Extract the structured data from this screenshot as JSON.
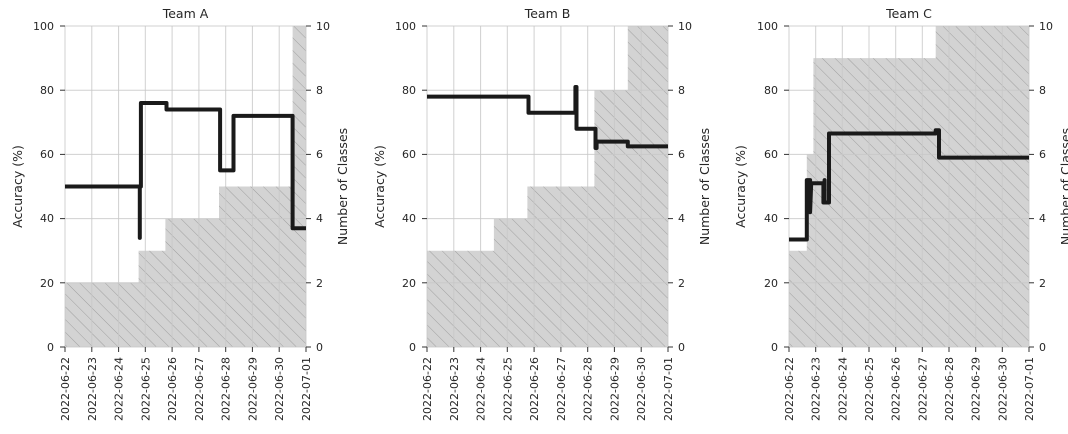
{
  "chart_data": [
    {
      "type": "line",
      "title": "Team A",
      "ylabel": "Accuracy (%)",
      "y2label": "Number of Classes",
      "ylim": [
        0,
        100
      ],
      "y2lim": [
        0,
        10
      ],
      "yticks": [
        "0",
        "20",
        "40",
        "60",
        "80",
        "100"
      ],
      "y2ticks": [
        "0",
        "2",
        "4",
        "6",
        "8",
        "10"
      ],
      "xlim": [
        "2022-06-22",
        "2022-07-01"
      ],
      "x_ticks": [
        "2022-06-22",
        "2022-06-23",
        "2022-06-24",
        "2022-06-25",
        "2022-06-26",
        "2022-06-27",
        "2022-06-28",
        "2022-06-29",
        "2022-06-30",
        "2022-07-01"
      ],
      "grid": true,
      "series": [
        {
          "axis": "left",
          "style": "step line",
          "color": "#1a1a1a",
          "x": [
            "2022-06-22 00:00",
            "2022-06-24 19:00",
            "2022-06-24 19:00",
            "2022-06-24 19:00",
            "2022-06-24 20:00",
            "2022-06-24 20:00",
            "2022-06-25 19:00",
            "2022-06-25 19:00",
            "2022-06-27 19:00",
            "2022-06-27 19:00",
            "2022-06-28 07:00",
            "2022-06-28 07:00",
            "2022-06-30 12:00",
            "2022-06-30 12:00",
            "2022-07-01 00:00"
          ],
          "y": [
            50,
            50,
            34,
            50,
            50,
            76,
            76,
            74,
            74,
            55,
            55,
            72,
            72,
            37,
            37
          ]
        },
        {
          "axis": "right",
          "style": "step area",
          "color": "#d3d3d3",
          "hatch": "//",
          "x": [
            "2022-06-22 00:00",
            "2022-06-24 18:00",
            "2022-06-24 18:00",
            "2022-06-25 18:00",
            "2022-06-25 18:00",
            "2022-06-27 18:00",
            "2022-06-27 18:00",
            "2022-06-30 12:00",
            "2022-06-30 12:00",
            "2022-07-01 00:00"
          ],
          "y": [
            2,
            2,
            3,
            3,
            4,
            4,
            5,
            5,
            10,
            10
          ]
        }
      ]
    },
    {
      "type": "line",
      "title": "Team B",
      "ylabel": "Accuracy (%)",
      "y2label": "Number of Classes",
      "ylim": [
        0,
        100
      ],
      "y2lim": [
        0,
        10
      ],
      "yticks": [
        "0",
        "20",
        "40",
        "60",
        "80",
        "100"
      ],
      "y2ticks": [
        "0",
        "2",
        "4",
        "6",
        "8",
        "10"
      ],
      "xlim": [
        "2022-06-22",
        "2022-07-01"
      ],
      "x_ticks": [
        "2022-06-22",
        "2022-06-23",
        "2022-06-24",
        "2022-06-25",
        "2022-06-26",
        "2022-06-27",
        "2022-06-28",
        "2022-06-29",
        "2022-06-30",
        "2022-07-01"
      ],
      "grid": true,
      "series": [
        {
          "axis": "left",
          "style": "step line",
          "color": "#1a1a1a",
          "x": [
            "2022-06-22 00:00",
            "2022-06-25 19:00",
            "2022-06-25 19:00",
            "2022-06-27 13:00",
            "2022-06-27 13:00",
            "2022-06-27 14:00",
            "2022-06-27 14:00",
            "2022-06-28 07:00",
            "2022-06-28 07:00",
            "2022-06-28 08:00",
            "2022-06-28 08:00",
            "2022-06-29 12:00",
            "2022-06-29 12:00",
            "2022-07-01 00:00"
          ],
          "y": [
            78,
            78,
            73,
            73,
            81,
            81,
            68,
            68,
            62,
            62,
            64,
            64,
            62.5,
            62.5
          ]
        },
        {
          "axis": "right",
          "style": "step area",
          "color": "#d3d3d3",
          "hatch": "//",
          "x": [
            "2022-06-22 00:00",
            "2022-06-24 12:00",
            "2022-06-24 12:00",
            "2022-06-25 18:00",
            "2022-06-25 18:00",
            "2022-06-28 06:00",
            "2022-06-28 06:00",
            "2022-06-29 12:00",
            "2022-06-29 12:00",
            "2022-07-01 00:00"
          ],
          "y": [
            3,
            3,
            4,
            4,
            5,
            5,
            8,
            8,
            10,
            10
          ]
        }
      ]
    },
    {
      "type": "line",
      "title": "Team C",
      "ylabel": "Accuracy (%)",
      "y2label": "Number of Classes",
      "ylim": [
        0,
        100
      ],
      "y2lim": [
        0,
        10
      ],
      "yticks": [
        "0",
        "20",
        "40",
        "60",
        "80",
        "100"
      ],
      "y2ticks": [
        "0",
        "2",
        "4",
        "6",
        "8",
        "10"
      ],
      "xlim": [
        "2022-06-22",
        "2022-07-01"
      ],
      "x_ticks": [
        "2022-06-22",
        "2022-06-23",
        "2022-06-24",
        "2022-06-25",
        "2022-06-26",
        "2022-06-27",
        "2022-06-28",
        "2022-06-29",
        "2022-06-30",
        "2022-07-01"
      ],
      "grid": true,
      "series": [
        {
          "axis": "left",
          "style": "step line",
          "color": "#1a1a1a",
          "x": [
            "2022-06-22 00:00",
            "2022-06-22 16:00",
            "2022-06-22 16:00",
            "2022-06-22 19:00",
            "2022-06-22 19:00",
            "2022-06-22 20:00",
            "2022-06-22 20:00",
            "2022-06-23 07:00",
            "2022-06-23 07:00",
            "2022-06-23 08:00",
            "2022-06-23 08:00",
            "2022-06-23 12:00",
            "2022-06-23 12:00",
            "2022-06-27 12:00",
            "2022-06-27 12:00",
            "2022-06-27 15:00",
            "2022-06-27 15:00",
            "2022-07-01 00:00"
          ],
          "y": [
            33.5,
            33.5,
            52,
            52,
            42,
            51,
            51,
            51,
            45,
            52,
            45,
            45,
            66.5,
            66.5,
            67.5,
            67.5,
            59,
            59
          ]
        },
        {
          "axis": "right",
          "style": "step area",
          "color": "#d3d3d3",
          "hatch": "//",
          "x": [
            "2022-06-22 00:00",
            "2022-06-22 16:00",
            "2022-06-22 16:00",
            "2022-06-22 22:00",
            "2022-06-22 22:00",
            "2022-06-27 12:00",
            "2022-06-27 12:00",
            "2022-07-01 00:00"
          ],
          "y": [
            3,
            3,
            6,
            6,
            9,
            9,
            10,
            10
          ]
        }
      ]
    }
  ]
}
